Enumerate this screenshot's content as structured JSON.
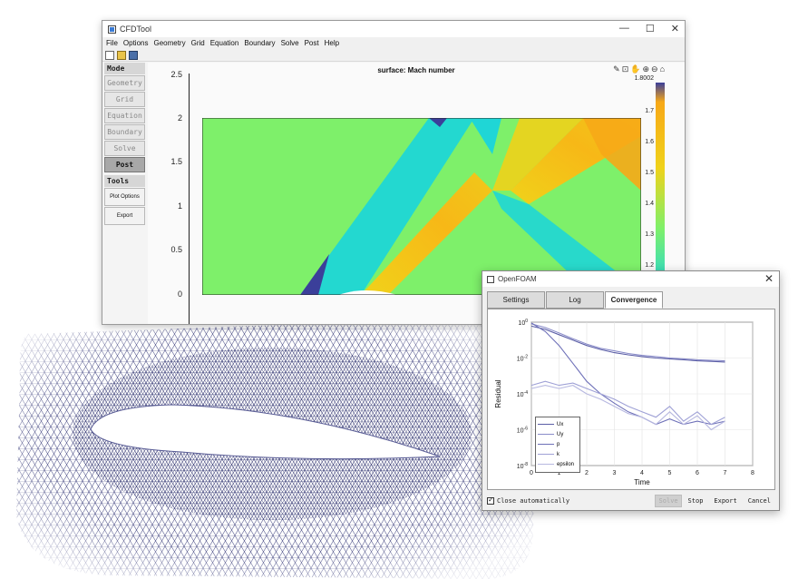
{
  "main_window": {
    "title": "CFDTool",
    "window_controls": [
      "—",
      "☐",
      "✕"
    ],
    "menu": [
      "File",
      "Options",
      "Geometry",
      "Grid",
      "Equation",
      "Boundary",
      "Solve",
      "Post",
      "Help"
    ],
    "toolbar_icons": [
      "new-file-icon",
      "open-folder-icon",
      "save-icon"
    ]
  },
  "sidebar": {
    "mode_header": "Mode",
    "mode_buttons": [
      "Geometry",
      "Grid",
      "Equation",
      "Boundary",
      "Solve",
      "Post"
    ],
    "active_mode": "Post",
    "tools_header": "Tools",
    "tool_buttons": [
      "Plot Options",
      "Export"
    ]
  },
  "plot": {
    "title": "surface: Mach number",
    "y_ticks": [
      "2.5",
      "2",
      "1.5",
      "1",
      "0.5",
      "0"
    ],
    "colorbar_ticks": [
      "1.8002",
      "1.7",
      "1.6",
      "1.5",
      "1.4",
      "1.3",
      "1.2"
    ],
    "colormap": [
      "#3b3f9a",
      "#1fd6d6",
      "#7ef06a",
      "#f0d21a",
      "#f7a817"
    ],
    "axes_tool_icons": [
      "brush-icon",
      "data-tip-icon",
      "pan-icon",
      "zoom-in-icon",
      "zoom-out-icon",
      "home-icon"
    ]
  },
  "foam_window": {
    "title": "OpenFOAM",
    "close": "✕",
    "tabs": [
      "Settings",
      "Log",
      "Convergence"
    ],
    "active_tab": "Convergence",
    "close_auto_label": "Close automatically",
    "close_auto_checked": true,
    "buttons": [
      "Solve",
      "Stop",
      "Export",
      "Cancel"
    ],
    "disabled_button": "Solve"
  },
  "chart_data": {
    "type": "line",
    "xlabel": "Time",
    "ylabel": "Residual",
    "xlim": [
      0,
      8
    ],
    "x_ticks": [
      "0",
      "1",
      "2",
      "3",
      "4",
      "5",
      "6",
      "7",
      "8"
    ],
    "y_scale": "log",
    "ylim": [
      1e-08,
      1
    ],
    "y_ticks": [
      "10^0",
      "10^-2",
      "10^-4",
      "10^-6",
      "10^-8"
    ],
    "legend_position": "bottom-left",
    "grid": true,
    "x": [
      0,
      0.5,
      1,
      1.5,
      2,
      2.5,
      3,
      3.5,
      4,
      4.5,
      5,
      5.5,
      6,
      6.5,
      7
    ],
    "series": [
      {
        "name": "Ux",
        "color": "#5b5ea6",
        "values": [
          0.6,
          0.4,
          0.2,
          0.1,
          0.05,
          0.03,
          0.02,
          0.015,
          0.012,
          0.01,
          0.009,
          0.008,
          0.007,
          0.0065,
          0.006
        ]
      },
      {
        "name": "Uy",
        "color": "#8a8cc9",
        "values": [
          0.8,
          0.5,
          0.25,
          0.12,
          0.06,
          0.035,
          0.025,
          0.018,
          0.014,
          0.012,
          0.01,
          0.009,
          0.008,
          0.0075,
          0.007
        ]
      },
      {
        "name": "p",
        "color": "#6e70b8",
        "values": [
          0.9,
          0.3,
          0.05,
          0.005,
          0.0005,
          0.0001,
          3e-05,
          1e-05,
          5e-06,
          2e-06,
          4e-06,
          2e-06,
          3e-06,
          2e-06,
          3e-06
        ]
      },
      {
        "name": "k",
        "color": "#9fa1d6",
        "values": [
          0.0003,
          0.0005,
          0.0003,
          0.0004,
          0.0002,
          0.0001,
          5e-05,
          2e-05,
          1e-05,
          5e-06,
          2e-05,
          3e-06,
          1e-05,
          2e-06,
          5e-06
        ]
      },
      {
        "name": "epsilon",
        "color": "#b7b8e0",
        "values": [
          0.0002,
          0.0003,
          0.0002,
          0.0003,
          0.0001,
          5e-05,
          2e-05,
          8e-06,
          5e-06,
          2e-06,
          1e-05,
          2e-06,
          6e-06,
          1e-06,
          3e-06
        ]
      }
    ]
  }
}
